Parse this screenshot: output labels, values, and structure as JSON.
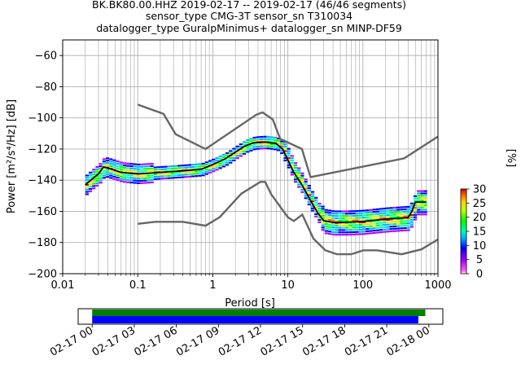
{
  "chart_data": [
    {
      "type": "heatmap",
      "title_lines": [
        "BK.BK80.00.HHZ   2019-02-17 -- 2019-02-17  (46/46 segments)",
        "sensor_type CMG-3T sensor_sn T310034",
        "datalogger_type GuralpMinimus+ datalogger_sn MINP-DF59"
      ],
      "xlabel": "Period [s]",
      "ylabel": "Power [m²/s⁴/Hz] [dB]",
      "xscale": "log",
      "xlim": [
        0.01,
        1000
      ],
      "ylim": [
        -200,
        -50
      ],
      "xticks": [
        {
          "value": 0.01,
          "label": "0.01"
        },
        {
          "value": 0.1,
          "label": "0.1"
        },
        {
          "value": 1,
          "label": "1"
        },
        {
          "value": 10,
          "label": "10"
        },
        {
          "value": 100,
          "label": "100"
        },
        {
          "value": 1000,
          "label": "1000"
        }
      ],
      "yticks": [
        {
          "value": -60,
          "label": "−60"
        },
        {
          "value": -80,
          "label": "−80"
        },
        {
          "value": -100,
          "label": "−100"
        },
        {
          "value": -120,
          "label": "−120"
        },
        {
          "value": -140,
          "label": "−140"
        },
        {
          "value": -160,
          "label": "−160"
        },
        {
          "value": -180,
          "label": "−180"
        },
        {
          "value": -200,
          "label": "−200"
        }
      ],
      "grid": true,
      "noise_models": {
        "color": "#666666",
        "nhnm": [
          [
            0.1,
            -91.5
          ],
          [
            0.22,
            -97.4
          ],
          [
            0.32,
            -110.5
          ],
          [
            0.8,
            -120
          ],
          [
            3.8,
            -98
          ],
          [
            4.6,
            -96.5
          ],
          [
            6.3,
            -101
          ],
          [
            7.9,
            -113.5
          ],
          [
            15.4,
            -120
          ],
          [
            20,
            -138
          ],
          [
            354.8,
            -126
          ],
          [
            1000,
            -112
          ]
        ],
        "nlnm": [
          [
            0.1,
            -168
          ],
          [
            0.17,
            -166.7
          ],
          [
            0.4,
            -166.7
          ],
          [
            0.8,
            -169.2
          ],
          [
            1.24,
            -163.7
          ],
          [
            2.4,
            -148.6
          ],
          [
            4.3,
            -141.1
          ],
          [
            5,
            -141.1
          ],
          [
            6,
            -149
          ],
          [
            10,
            -163.8
          ],
          [
            12,
            -166.2
          ],
          [
            15.6,
            -162.1
          ],
          [
            21.9,
            -177.5
          ],
          [
            31.6,
            -185
          ],
          [
            45,
            -187.5
          ],
          [
            70,
            -187.5
          ],
          [
            101,
            -185
          ],
          [
            154,
            -185
          ],
          [
            328,
            -187.5
          ],
          [
            600,
            -184.4
          ],
          [
            1000,
            -178
          ]
        ]
      },
      "mode_line": {
        "color": "#000000",
        "points": [
          [
            0.02,
            -143
          ],
          [
            0.025,
            -139
          ],
          [
            0.03,
            -136
          ],
          [
            0.035,
            -131.5
          ],
          [
            0.045,
            -133
          ],
          [
            0.06,
            -135
          ],
          [
            0.1,
            -136
          ],
          [
            0.2,
            -135
          ],
          [
            0.4,
            -134
          ],
          [
            0.7,
            -133
          ],
          [
            1,
            -130
          ],
          [
            1.5,
            -126
          ],
          [
            2,
            -122
          ],
          [
            2.7,
            -118
          ],
          [
            3.5,
            -116
          ],
          [
            5,
            -115.5
          ],
          [
            7,
            -116.5
          ],
          [
            8.5,
            -120
          ],
          [
            10,
            -127
          ],
          [
            12,
            -135
          ],
          [
            15,
            -142
          ],
          [
            20,
            -153
          ],
          [
            25,
            -161
          ],
          [
            30,
            -166
          ],
          [
            40,
            -167
          ],
          [
            60,
            -167
          ],
          [
            100,
            -166.5
          ],
          [
            200,
            -165
          ],
          [
            400,
            -164
          ],
          [
            450,
            -160
          ],
          [
            500,
            -154
          ],
          [
            700,
            -154
          ]
        ]
      },
      "colorbar": {
        "label": "[%]",
        "range": [
          0,
          30
        ],
        "ticks": [
          {
            "value": 0,
            "label": "0"
          },
          {
            "value": 5,
            "label": "5"
          },
          {
            "value": 10,
            "label": "10"
          },
          {
            "value": 15,
            "label": "15"
          },
          {
            "value": 20,
            "label": "20"
          },
          {
            "value": 25,
            "label": "25"
          },
          {
            "value": 30,
            "label": "30"
          }
        ]
      }
    },
    {
      "type": "timeline",
      "xlim": [
        "2019-02-16 23:00",
        "2019-02-18 01:00"
      ],
      "ticks": [
        {
          "time": "2019-02-17 00:00",
          "label": "02-17 00"
        },
        {
          "time": "2019-02-17 03:00",
          "label": "02-17 03"
        },
        {
          "time": "2019-02-17 06:00",
          "label": "02-17 06"
        },
        {
          "time": "2019-02-17 09:00",
          "label": "02-17 09"
        },
        {
          "time": "2019-02-17 12:00",
          "label": "02-17 12"
        },
        {
          "time": "2019-02-17 15:00",
          "label": "02-17 15"
        },
        {
          "time": "2019-02-17 18:00",
          "label": "02-17 18"
        },
        {
          "time": "2019-02-17 21:00",
          "label": "02-17 21"
        },
        {
          "time": "2019-02-18 00:00",
          "label": "02-18 00"
        }
      ],
      "bars": [
        {
          "color": "#008000",
          "start": "2019-02-17 00:00",
          "end": "2019-02-17 23:45"
        },
        {
          "color": "#0000ff",
          "start": "2019-02-17 00:00",
          "end": "2019-02-17 23:15"
        }
      ]
    }
  ]
}
